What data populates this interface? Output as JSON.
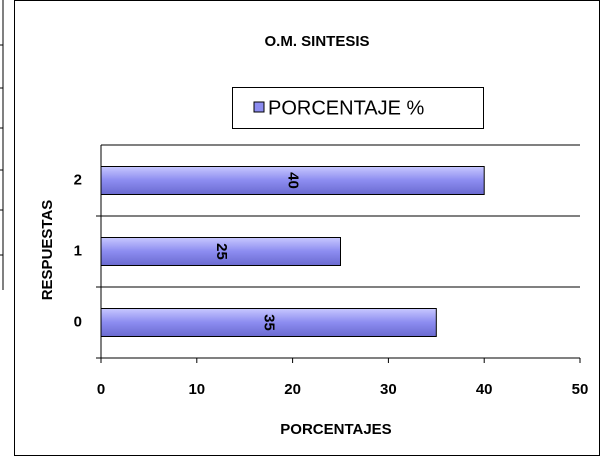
{
  "chart_data": {
    "type": "hbar",
    "title": "O.M. SINTESIS",
    "series": [
      {
        "name": "PORCENTAJE %",
        "color": "#8c8cf0"
      }
    ],
    "categories": [
      "0",
      "1",
      "2"
    ],
    "values": [
      35,
      25,
      40
    ],
    "xlim": [
      0,
      50
    ],
    "xticks": [
      0,
      10,
      20,
      30,
      40,
      50
    ],
    "xlabel": "PORCENTAJES",
    "ylabel": "RESPUESTAS",
    "legend": "top"
  }
}
